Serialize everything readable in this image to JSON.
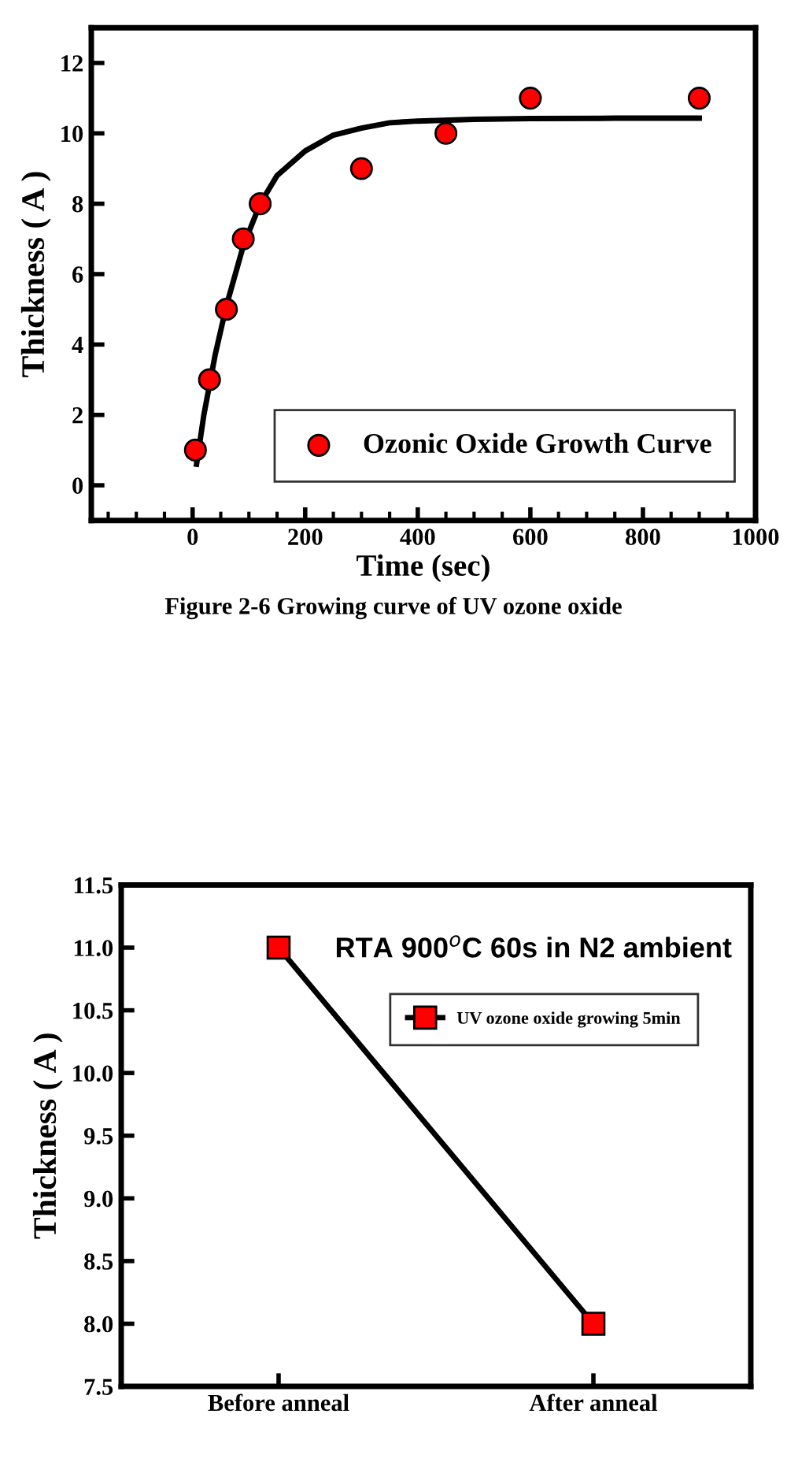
{
  "chart_data": [
    {
      "type": "scatter",
      "xlabel": "Time (sec)",
      "ylabel": "Thickness ( A )",
      "xlim": [
        -180,
        1000
      ],
      "ylim": [
        -1,
        13
      ],
      "xticks": [
        0,
        200,
        400,
        600,
        800,
        1000
      ],
      "yticks": [
        0,
        2,
        4,
        6,
        8,
        10,
        12
      ],
      "legend": "bottom right",
      "grid": false,
      "series": [
        {
          "name": "Ozonic Oxide Growth Curve",
          "marker": "circle",
          "color": "#ff0000",
          "x": [
            5,
            30,
            60,
            90,
            120,
            300,
            450,
            600,
            900
          ],
          "values": [
            1,
            3,
            5,
            7,
            8,
            9,
            10,
            11,
            11
          ]
        },
        {
          "type": "line",
          "color": "#000000",
          "line_style": "solid",
          "x": [
            7,
            20,
            40,
            60,
            90,
            120,
            150,
            200,
            250,
            300,
            350,
            400,
            500,
            600,
            750,
            900
          ],
          "values": [
            0.6,
            2,
            3.7,
            5.1,
            6.8,
            8.0,
            8.8,
            9.5,
            9.95,
            10.15,
            10.3,
            10.35,
            10.4,
            10.42,
            10.43,
            10.43
          ]
        }
      ],
      "annotations": [
        "Figure 2-6 Growing curve of UV ozone oxide"
      ]
    },
    {
      "type": "line",
      "ylabel": "Thickness ( A )",
      "categories": [
        "Before anneal",
        "After anneal"
      ],
      "ylim": [
        7.5,
        11.5
      ],
      "yticks": [
        {
          "value": 7.5,
          "label": "7.5"
        },
        {
          "value": 8.0,
          "label": "8.0"
        },
        {
          "value": 8.5,
          "label": "8.5"
        },
        {
          "value": 9.0,
          "label": "9.0"
        },
        {
          "value": 9.5,
          "label": "9.5"
        },
        {
          "value": 10.0,
          "label": "10.0"
        },
        {
          "value": 10.5,
          "label": "10.5"
        },
        {
          "value": 11.0,
          "label": "11.0"
        },
        {
          "value": 11.5,
          "label": "11.5"
        }
      ],
      "legend": "top right",
      "marker": "square",
      "line_style": "solid",
      "grid": false,
      "series": [
        {
          "name": "UV ozone oxide growing 5min",
          "color": "#ff0000",
          "values": [
            11.0,
            8.0
          ]
        }
      ],
      "annotations": [
        "RTA 900$^{o}$C 60s in N2 ambient"
      ]
    }
  ]
}
